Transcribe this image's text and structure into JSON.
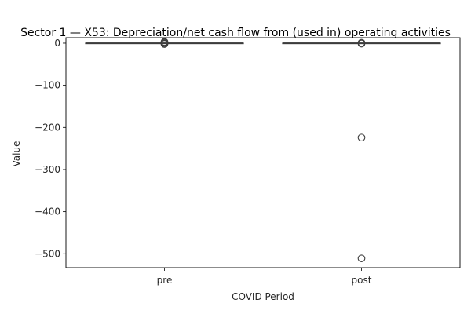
{
  "chart_data": {
    "type": "box",
    "title": "Sector 1 — X53: Depreciation/net cash flow from (used in) operating activities",
    "xlabel": "COVID Period",
    "ylabel": "Value",
    "categories": [
      "pre",
      "post"
    ],
    "ylim": [
      -533,
      13
    ],
    "yticks": [
      0,
      -100,
      -200,
      -300,
      -400,
      -500
    ],
    "ytick_labels": [
      "0",
      "−100",
      "−200",
      "−300",
      "−400",
      "−500"
    ],
    "grid": false,
    "boxes": [
      {
        "category": "pre",
        "min": 0,
        "q1": 0,
        "median": 0,
        "q3": 0,
        "max": 0,
        "outliers": [
          3,
          2,
          1,
          -1,
          -2
        ]
      },
      {
        "category": "post",
        "min": 0,
        "q1": 0,
        "median": 0,
        "q3": 0,
        "max": 0,
        "outliers": [
          1,
          -1,
          -224,
          -511
        ]
      }
    ],
    "colors": {
      "box_line": "#3d3d3d",
      "outlier_edge": "#3d3d3d",
      "axis": "#000000"
    }
  }
}
